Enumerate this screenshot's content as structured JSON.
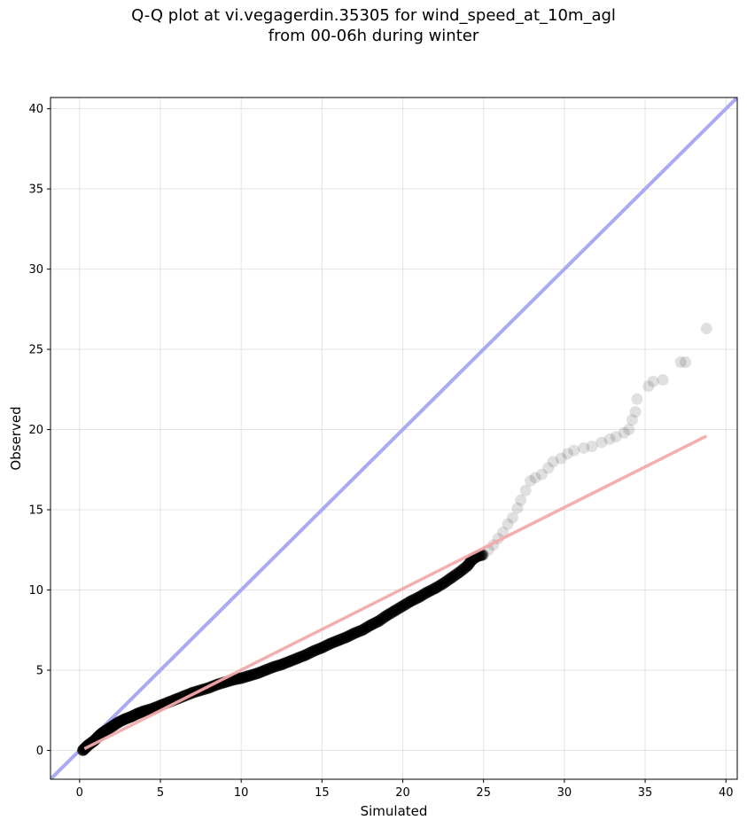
{
  "chart_data": {
    "type": "scatter",
    "title_lines": [
      "Q-Q plot at vi.vegagerdin.35305 for wind_speed_at_10m_agl",
      "from 00-06h during winter"
    ],
    "xlabel": "Simulated",
    "ylabel": "Observed",
    "xlim": [
      -1.8,
      40.7
    ],
    "ylim": [
      -1.8,
      40.7
    ],
    "xticks": [
      0,
      5,
      10,
      15,
      20,
      25,
      30,
      35,
      40
    ],
    "yticks": [
      0,
      5,
      10,
      15,
      20,
      25,
      30,
      35,
      40
    ],
    "grid": true,
    "point_color": "#000000",
    "identity_line": {
      "color": "#aaaaf2",
      "from": [
        -1.8,
        -1.8
      ],
      "to": [
        40.7,
        40.7
      ]
    },
    "fit_line": {
      "color": "#f4aaaa",
      "from": [
        0.3,
        0.1
      ],
      "to": [
        38.8,
        19.6
      ]
    },
    "series": [
      {
        "values_xy": [
          [
            0.2,
            0.0
          ],
          [
            0.35,
            0.15
          ],
          [
            0.5,
            0.3
          ],
          [
            0.7,
            0.45
          ],
          [
            0.9,
            0.6
          ],
          [
            1.1,
            0.8
          ],
          [
            1.3,
            1.0
          ],
          [
            1.5,
            1.15
          ],
          [
            1.8,
            1.35
          ],
          [
            2.1,
            1.55
          ],
          [
            2.4,
            1.75
          ],
          [
            2.8,
            1.95
          ],
          [
            3.2,
            2.1
          ],
          [
            3.6,
            2.3
          ],
          [
            4.0,
            2.45
          ],
          [
            4.5,
            2.6
          ],
          [
            5.0,
            2.8
          ],
          [
            5.5,
            3.0
          ],
          [
            6.0,
            3.2
          ],
          [
            6.5,
            3.4
          ],
          [
            7.0,
            3.6
          ],
          [
            7.5,
            3.75
          ],
          [
            8.0,
            3.9
          ],
          [
            8.5,
            4.1
          ],
          [
            9.0,
            4.25
          ],
          [
            9.5,
            4.4
          ],
          [
            10.0,
            4.5
          ],
          [
            10.5,
            4.65
          ],
          [
            11.0,
            4.8
          ],
          [
            11.5,
            5.0
          ],
          [
            12.0,
            5.2
          ],
          [
            12.5,
            5.35
          ],
          [
            13.0,
            5.55
          ],
          [
            13.5,
            5.75
          ],
          [
            14.0,
            5.95
          ],
          [
            14.5,
            6.2
          ],
          [
            15.0,
            6.4
          ],
          [
            15.5,
            6.65
          ],
          [
            16.0,
            6.85
          ],
          [
            16.5,
            7.05
          ],
          [
            17.0,
            7.3
          ],
          [
            17.5,
            7.5
          ],
          [
            18.0,
            7.8
          ],
          [
            18.5,
            8.05
          ],
          [
            19.0,
            8.4
          ],
          [
            19.5,
            8.7
          ],
          [
            20.0,
            9.0
          ],
          [
            20.5,
            9.3
          ],
          [
            21.0,
            9.55
          ],
          [
            21.5,
            9.85
          ],
          [
            22.0,
            10.1
          ],
          [
            22.5,
            10.4
          ],
          [
            23.0,
            10.75
          ],
          [
            23.5,
            11.1
          ],
          [
            24.0,
            11.5
          ],
          [
            24.3,
            11.9
          ],
          [
            24.6,
            12.1
          ],
          [
            25.0,
            12.2
          ],
          [
            25.3,
            12.5
          ],
          [
            25.6,
            12.8
          ],
          [
            25.9,
            13.2
          ],
          [
            26.2,
            13.6
          ],
          [
            26.5,
            14.1
          ],
          [
            26.8,
            14.5
          ],
          [
            27.1,
            15.1
          ],
          [
            27.3,
            15.6
          ],
          [
            27.6,
            16.2
          ],
          [
            27.9,
            16.8
          ],
          [
            28.2,
            17.0
          ],
          [
            28.6,
            17.2
          ],
          [
            29.0,
            17.6
          ],
          [
            29.3,
            18.0
          ],
          [
            29.8,
            18.2
          ],
          [
            30.2,
            18.5
          ],
          [
            30.6,
            18.7
          ],
          [
            31.2,
            18.85
          ],
          [
            31.7,
            18.95
          ],
          [
            32.3,
            19.2
          ],
          [
            32.8,
            19.4
          ],
          [
            33.2,
            19.55
          ],
          [
            33.7,
            19.8
          ],
          [
            34.0,
            20.0
          ],
          [
            34.2,
            20.6
          ],
          [
            34.4,
            21.1
          ],
          [
            34.5,
            21.9
          ],
          [
            35.2,
            22.7
          ],
          [
            35.5,
            23.0
          ],
          [
            36.1,
            23.1
          ],
          [
            37.2,
            24.2
          ],
          [
            37.5,
            24.2
          ],
          [
            38.8,
            26.3
          ]
        ]
      }
    ]
  }
}
